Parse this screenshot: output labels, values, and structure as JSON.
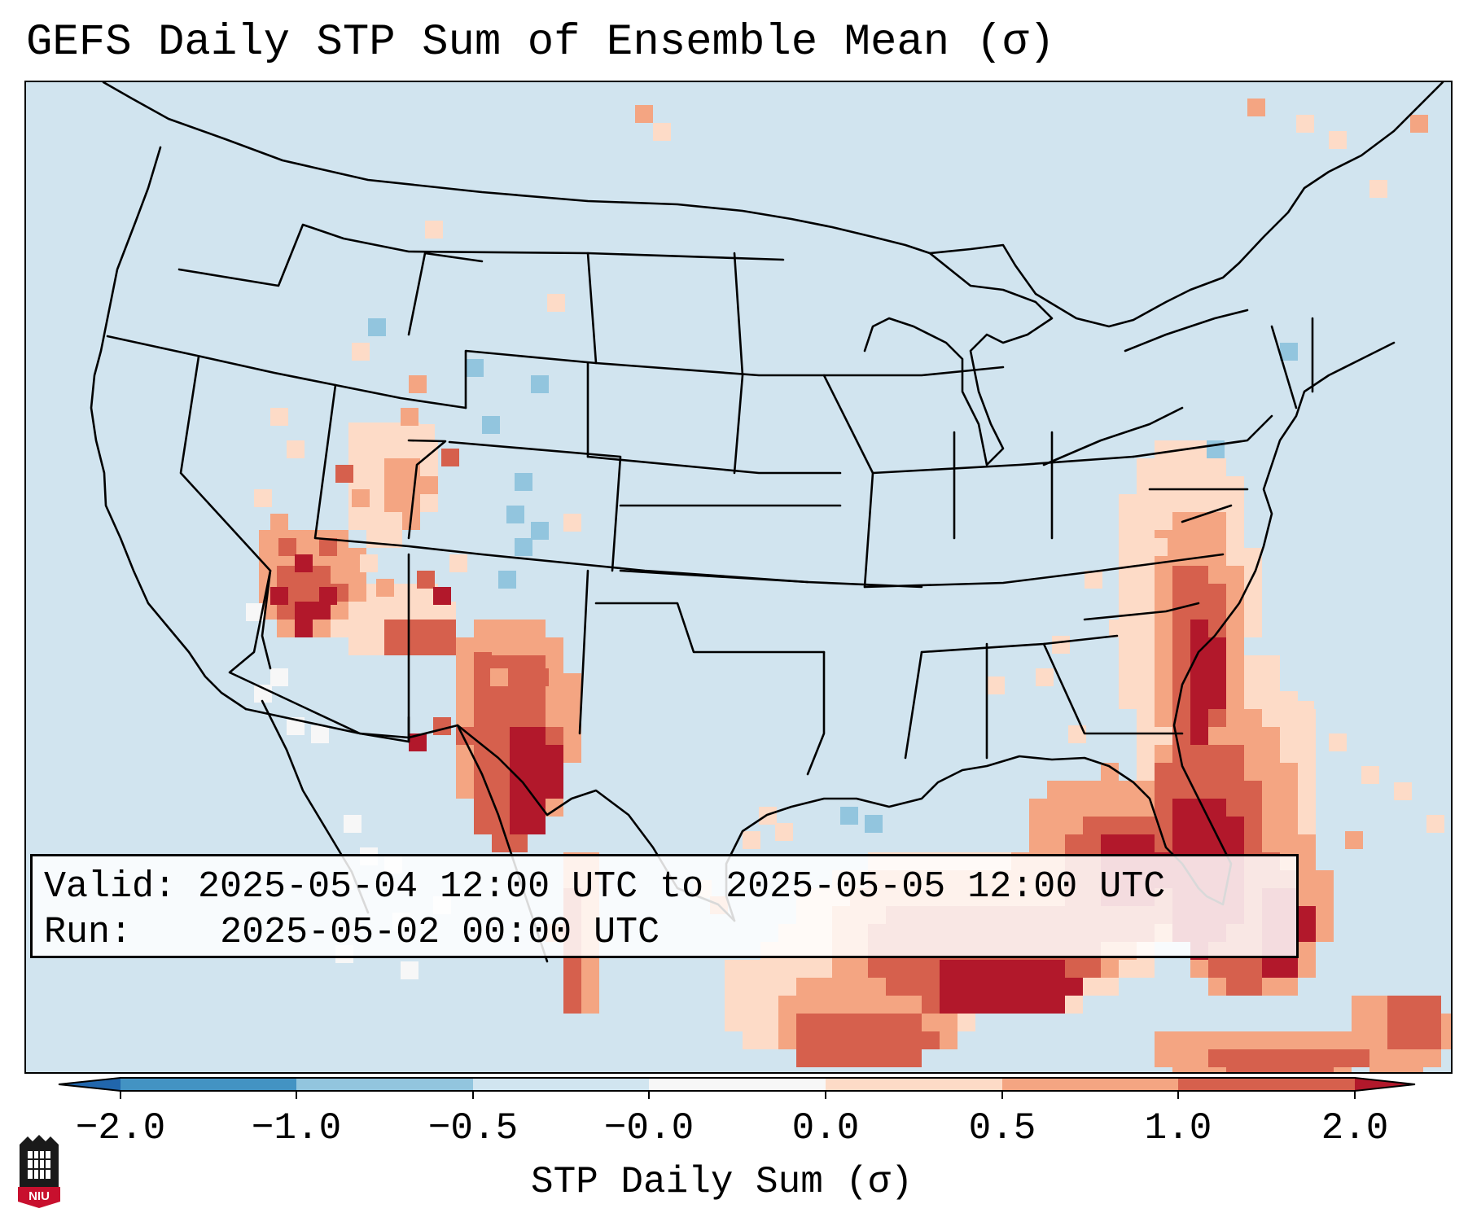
{
  "title": "GEFS Daily STP Sum of Ensemble Mean (σ)",
  "info": {
    "valid_label": "Valid:",
    "valid_value": "2025-05-04 12:00 UTC to 2025-05-05 12:00 UTC",
    "run_label": "Run:",
    "run_value": "2025-05-02 00:00 UTC"
  },
  "colorbar": {
    "label": "STP Daily Sum (σ)",
    "ticks": [
      "−2.0",
      "−1.0",
      "−0.5",
      "−0.0",
      "0.0",
      "0.5",
      "1.0",
      "2.0"
    ],
    "colors": [
      "#2166ac",
      "#4393c3",
      "#92c5de",
      "#d1e5f0",
      "#f7f7f7",
      "#fddbc7",
      "#f4a582",
      "#d6604d",
      "#b2182b"
    ],
    "extend": "both"
  },
  "map": {
    "background_color": "#d1e4ef",
    "region": "Contiguous United States",
    "highlight_regions": [
      "Southeast US",
      "Gulf of Mexico",
      "Florida",
      "Mid-Atlantic",
      "Southwest US",
      "West Texas"
    ]
  },
  "logo": {
    "text": "NIU",
    "color": "#c8102e"
  }
}
